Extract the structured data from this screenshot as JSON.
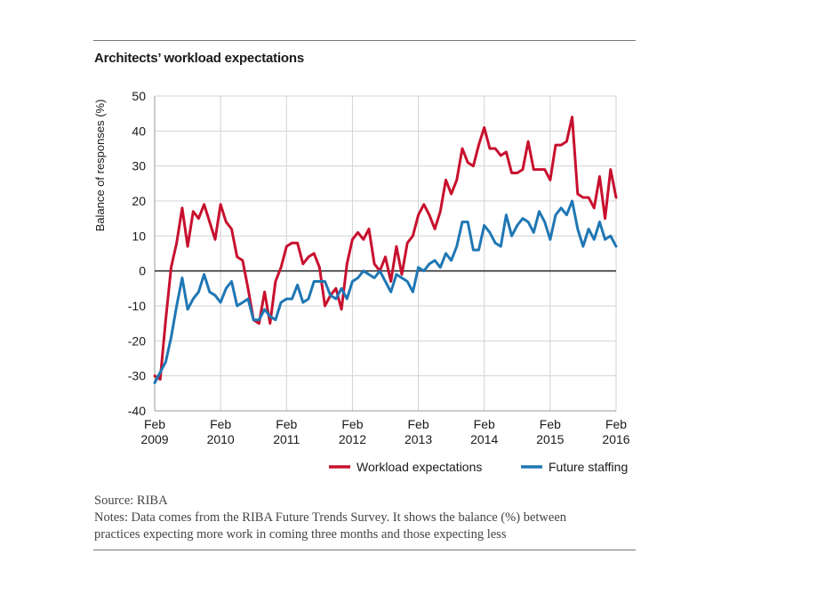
{
  "title": "Architects’ workload expectations",
  "chart_data": {
    "type": "line",
    "ylabel": "Balance of responses (%)",
    "ylim": [
      -40,
      50
    ],
    "yticks": [
      50,
      40,
      30,
      20,
      10,
      0,
      -10,
      -20,
      -30,
      -40
    ],
    "xlim": [
      0,
      84
    ],
    "xticks": [
      {
        "month": 0,
        "line1": "Feb",
        "line2": "2009"
      },
      {
        "month": 12,
        "line1": "Feb",
        "line2": "2010"
      },
      {
        "month": 24,
        "line1": "Feb",
        "line2": "2011"
      },
      {
        "month": 36,
        "line1": "Feb",
        "line2": "2012"
      },
      {
        "month": 48,
        "line1": "Feb",
        "line2": "2013"
      },
      {
        "month": 60,
        "line1": "Feb",
        "line2": "2014"
      },
      {
        "month": 72,
        "line1": "Feb",
        "line2": "2015"
      },
      {
        "month": 84,
        "line1": "Feb",
        "line2": "2016"
      }
    ],
    "x_units": "months since Feb 2009",
    "series": [
      {
        "name": "Workload expectations",
        "color": "#c8102e",
        "values": [
          -30,
          -31,
          -14,
          1,
          8,
          18,
          7,
          17,
          15,
          19,
          14,
          9,
          19,
          14,
          12,
          4,
          3,
          -5,
          -14,
          -15,
          -6,
          -15,
          -3,
          1,
          7,
          8,
          8,
          2,
          4,
          5,
          1,
          -10,
          -7,
          -5,
          -11,
          2,
          9,
          11,
          9,
          12,
          2,
          0,
          4,
          -3,
          7,
          -1,
          8,
          10,
          16,
          19,
          16,
          12,
          17,
          26,
          22,
          26,
          35,
          31,
          30,
          36,
          41,
          35,
          35,
          33,
          34,
          28,
          28,
          29,
          37,
          29,
          29,
          29,
          26,
          36,
          36,
          37,
          44,
          22,
          21,
          21,
          18,
          27,
          15,
          29,
          21
        ]
      },
      {
        "name": "Future staffing",
        "color": "#1f77b4",
        "values": [
          -32,
          -29,
          -26,
          -19,
          -10,
          -2,
          -11,
          -8,
          -6,
          -1,
          -6,
          -7,
          -9,
          -5,
          -3,
          -10,
          -9,
          -8,
          -14,
          -14,
          -11,
          -13,
          -14,
          -9,
          -8,
          -8,
          -4,
          -9,
          -8,
          -3,
          -3,
          -3,
          -7,
          -8,
          -5,
          -8,
          -3,
          -2,
          0,
          -1,
          -2,
          0,
          -3,
          -6,
          -1,
          -2,
          -3,
          -6,
          1,
          0,
          2,
          3,
          1,
          5,
          3,
          7,
          14,
          14,
          6,
          6,
          13,
          11,
          8,
          7,
          16,
          10,
          13,
          15,
          14,
          11,
          17,
          14,
          9,
          16,
          18,
          16,
          20,
          12,
          7,
          12,
          9,
          14,
          9,
          10,
          7
        ]
      }
    ],
    "legend": {
      "position": "bottom-right"
    }
  },
  "source_line": "Source: RIBA",
  "notes_line1": "Notes: Data comes from the RIBA Future Trends Survey. It shows the balance (%) between",
  "notes_line2": "practices expecting more work in coming three months and those expecting less"
}
